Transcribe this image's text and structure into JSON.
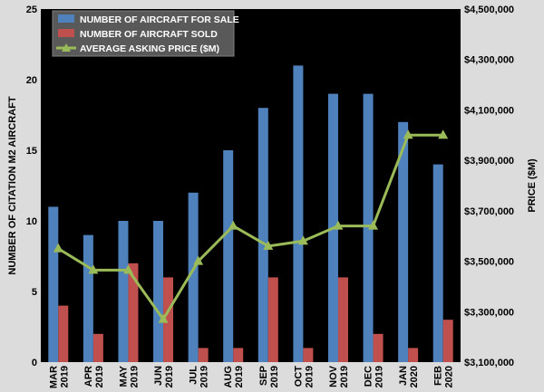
{
  "chart_data": {
    "type": "bar",
    "categories": [
      [
        "MAR",
        "2019"
      ],
      [
        "APR",
        "2019"
      ],
      [
        "MAY",
        "2019"
      ],
      [
        "JUN",
        "2019"
      ],
      [
        "JUL",
        "2019"
      ],
      [
        "AUG",
        "2019"
      ],
      [
        "SEP",
        "2019"
      ],
      [
        "OCT",
        "2019"
      ],
      [
        "NOV",
        "2019"
      ],
      [
        "DEC",
        "2019"
      ],
      [
        "JAN",
        "2020"
      ],
      [
        "FEB",
        "2020"
      ]
    ],
    "series": [
      {
        "name": "NUMBER OF AIRCRAFT FOR SALE",
        "type": "bar",
        "axis": "left",
        "color": "#4f81bd",
        "values": [
          11,
          9,
          10,
          10,
          12,
          15,
          18,
          21,
          19,
          19,
          17,
          14
        ]
      },
      {
        "name": "NUMBER OF AIRCRAFT SOLD",
        "type": "bar",
        "axis": "left",
        "color": "#c0504d",
        "values": [
          4,
          2,
          7,
          6,
          1,
          1,
          6,
          1,
          6,
          2,
          1,
          3
        ]
      },
      {
        "name": "AVERAGE ASKING PRICE ($M)",
        "type": "line",
        "axis": "right",
        "color": "#9bbb59",
        "marker": "triangle",
        "values": [
          3550000,
          3465000,
          3465000,
          3270000,
          3500000,
          3640000,
          3560000,
          3580000,
          3640000,
          3640000,
          4000000,
          4000000
        ]
      }
    ],
    "y_left": {
      "label": "NUMBER OF CITATION M2 AIRCRAFT",
      "lim": [
        0,
        25
      ],
      "ticks": [
        0,
        5,
        10,
        15,
        20,
        25
      ]
    },
    "y_right": {
      "label": "PRICE ($M)",
      "lim": [
        3100000,
        4500000
      ],
      "ticks": [
        3100000,
        3300000,
        3500000,
        3700000,
        3900000,
        4100000,
        4300000,
        4500000
      ],
      "tick_labels": [
        "$3,100,000",
        "$3,300,000",
        "$3,500,000",
        "$3,700,000",
        "$3,900,000",
        "$4,100,000",
        "$4,300,000",
        "$4,500,000"
      ]
    },
    "legend_position": "top-left",
    "plot_background": "#000000",
    "grid": false
  }
}
